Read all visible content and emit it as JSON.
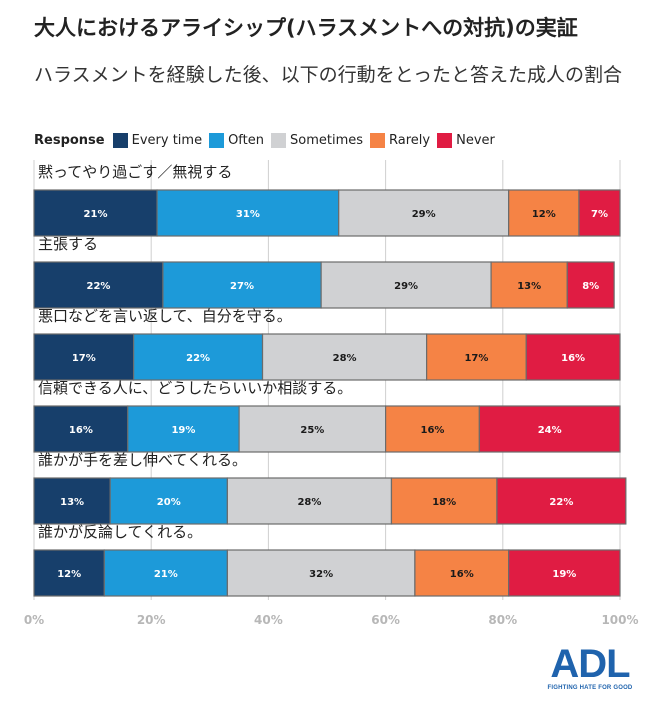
{
  "title": "大人におけるアライシップ(ハラスメントへの対抗)の実証",
  "subtitle": "ハラスメントを経験した後、以下の行動をとったと答えた成人の割合",
  "legend_title": "Response",
  "logo": {
    "mark": "ADL",
    "tagline": "FIGHTING HATE FOR GOOD"
  },
  "colors": {
    "every_time": "#173f6b",
    "often": "#1d9ad9",
    "sometimes": "#d0d1d3",
    "rarely": "#f58345",
    "never": "#e01c43",
    "axis_text": "#b7b7b7",
    "grid": "#cfcfcf"
  },
  "chart_data": {
    "type": "bar",
    "orientation": "horizontal",
    "stacked": true,
    "title": "大人におけるアライシップ(ハラスメントへの対抗)の実証",
    "subtitle": "ハラスメントを経験した後、以下の行動をとったと答えた成人の割合",
    "xlim": [
      0,
      100
    ],
    "xticks": [
      "0%",
      "20%",
      "40%",
      "60%",
      "80%",
      "100%"
    ],
    "legend_position": "top-left",
    "grid": true,
    "categories": [
      "黙ってやり過ごす／無視する",
      "主張する",
      "悪口などを言い返して、自分を守る。",
      "信頼できる人に、どうしたらいいか相談する。",
      "誰かが手を差し伸べてくれる。",
      "誰かが反論してくれる。"
    ],
    "series": [
      {
        "name": "Every time",
        "color": "#173f6b",
        "values": [
          21,
          22,
          17,
          16,
          13,
          12
        ]
      },
      {
        "name": "Often",
        "color": "#1d9ad9",
        "values": [
          31,
          27,
          22,
          19,
          20,
          21
        ]
      },
      {
        "name": "Sometimes",
        "color": "#d0d1d3",
        "values": [
          29,
          29,
          28,
          25,
          28,
          32
        ]
      },
      {
        "name": "Rarely",
        "color": "#f58345",
        "values": [
          12,
          13,
          17,
          16,
          18,
          16
        ]
      },
      {
        "name": "Never",
        "color": "#e01c43",
        "values": [
          7,
          8,
          16,
          24,
          22,
          19
        ]
      }
    ]
  }
}
